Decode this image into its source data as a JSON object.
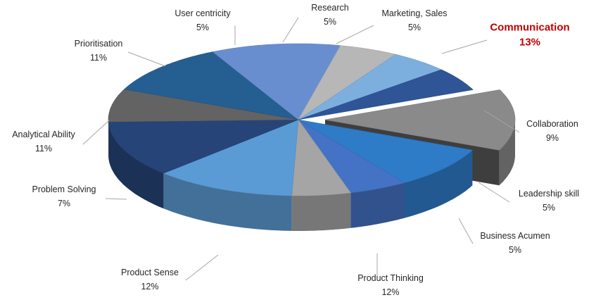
{
  "chart_data": {
    "type": "pie",
    "variant": "3d-exploded",
    "title": "",
    "slices": [
      {
        "label": "Communication",
        "value": 13,
        "display": "13%",
        "color": "#8a8a8a",
        "highlight": true,
        "highlight_color": "#c00000"
      },
      {
        "label": "Collaboration",
        "value": 9,
        "display": "9%",
        "color": "#2e7bc8"
      },
      {
        "label": "Leadership skill",
        "value": 5,
        "display": "5%",
        "color": "#4472c4"
      },
      {
        "label": "Business Acumen",
        "value": 5,
        "display": "5%",
        "color": "#a5a5a5"
      },
      {
        "label": "Product Thinking",
        "value": 12,
        "display": "12%",
        "color": "#5b9bd5"
      },
      {
        "label": "Product Sense",
        "value": 12,
        "display": "12%",
        "color": "#264478"
      },
      {
        "label": "Problem Solving",
        "value": 7,
        "display": "7%",
        "color": "#636363"
      },
      {
        "label": "Analytical Ability",
        "value": 11,
        "display": "11%",
        "color": "#255e91"
      },
      {
        "label": "Prioritisation",
        "value": 11,
        "display": "11%",
        "color": "#698ed0"
      },
      {
        "label": "User centricity",
        "value": 5,
        "display": "5%",
        "color": "#b7b7b7"
      },
      {
        "label": "Research",
        "value": 5,
        "display": "5%",
        "color": "#7cafdd"
      },
      {
        "label": "Marketing, Sales",
        "value": 5,
        "display": "5%",
        "color": "#2f5597"
      }
    ]
  }
}
